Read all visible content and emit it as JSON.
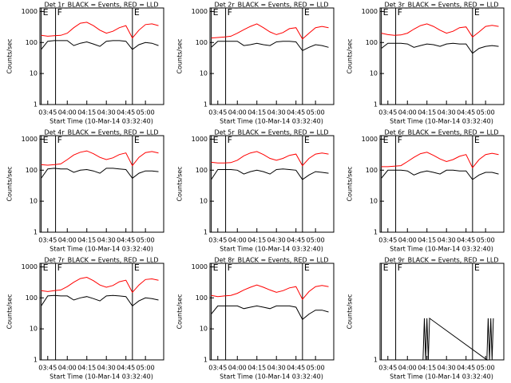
{
  "chart_data": [
    {
      "type": "line",
      "title": "Det 1r_BLACK = Events, RED = LLD",
      "x_label": "Start Time (10-Mar-14 03:32:40)",
      "y_label": "Counts/sec",
      "log": true,
      "x": [
        "03:40",
        "03:45",
        "03:50",
        "03:55",
        "04:00",
        "04:05",
        "04:10",
        "04:15",
        "04:20",
        "04:25",
        "04:30",
        "04:35",
        "04:40",
        "04:45",
        "04:50",
        "04:55",
        "05:00",
        "05:05",
        "05:10"
      ],
      "xlim": [
        "03:39",
        "05:14"
      ],
      "xticks": [
        "03:45",
        "04:00",
        "04:15",
        "04:30",
        "04:45",
        "05:00"
      ],
      "ylim": [
        1,
        1300
      ],
      "yticks": [
        1,
        10,
        100,
        1000
      ],
      "markers": [
        {
          "x": "03:40",
          "label": "E"
        },
        {
          "x": "03:51",
          "label": "F"
        },
        {
          "x": "04:50",
          "label": "E"
        }
      ],
      "series": [
        {
          "color": "#000000",
          "values": [
            60,
            110,
            115,
            115,
            115,
            80,
            95,
            105,
            90,
            75,
            110,
            115,
            115,
            110,
            60,
            85,
            100,
            95,
            80
          ]
        },
        {
          "color": "#ff0000",
          "values": [
            170,
            160,
            165,
            170,
            200,
            300,
            420,
            450,
            350,
            250,
            200,
            230,
            300,
            350,
            140,
            250,
            380,
            400,
            350
          ]
        }
      ]
    },
    {
      "type": "line",
      "title": "Det 2r_BLACK = Events, RED = LLD",
      "x_label": "Start Time (10-Mar-14 03:32:40)",
      "y_label": "Counts/sec",
      "log": true,
      "x": [
        "03:40",
        "03:45",
        "03:50",
        "03:55",
        "04:00",
        "04:05",
        "04:10",
        "04:15",
        "04:20",
        "04:25",
        "04:30",
        "04:35",
        "04:40",
        "04:45",
        "04:50",
        "04:55",
        "05:00",
        "05:05",
        "05:10"
      ],
      "xlim": [
        "03:39",
        "05:14"
      ],
      "xticks": [
        "03:45",
        "04:00",
        "04:15",
        "04:30",
        "04:45",
        "05:00"
      ],
      "ylim": [
        1,
        1300
      ],
      "yticks": [
        1,
        10,
        100,
        1000
      ],
      "markers": [
        {
          "x": "03:40",
          "label": "E"
        },
        {
          "x": "03:51",
          "label": "F"
        },
        {
          "x": "04:50",
          "label": "E"
        }
      ],
      "series": [
        {
          "color": "#000000",
          "values": [
            70,
            110,
            110,
            110,
            110,
            80,
            85,
            95,
            85,
            80,
            105,
            110,
            110,
            105,
            55,
            70,
            85,
            80,
            70
          ]
        },
        {
          "color": "#ff0000",
          "values": [
            140,
            145,
            150,
            160,
            200,
            260,
            330,
            400,
            300,
            220,
            180,
            210,
            280,
            300,
            130,
            200,
            300,
            330,
            300
          ]
        }
      ]
    },
    {
      "type": "line",
      "title": "Det 3r_BLACK = Events, RED = LLD",
      "x_label": "Start Time (10-Mar-14 03:32:40)",
      "y_label": "Counts/sec",
      "log": true,
      "x": [
        "03:40",
        "03:45",
        "03:50",
        "03:55",
        "04:00",
        "04:05",
        "04:10",
        "04:15",
        "04:20",
        "04:25",
        "04:30",
        "04:35",
        "04:40",
        "04:45",
        "04:50",
        "04:55",
        "05:00",
        "05:05",
        "05:10"
      ],
      "xlim": [
        "03:39",
        "05:14"
      ],
      "xticks": [
        "03:45",
        "04:00",
        "04:15",
        "04:30",
        "04:45",
        "05:00"
      ],
      "ylim": [
        1,
        1300
      ],
      "yticks": [
        1,
        10,
        100,
        1000
      ],
      "markers": [
        {
          "x": "03:40",
          "label": "E"
        },
        {
          "x": "03:51",
          "label": "F"
        },
        {
          "x": "04:50",
          "label": "E"
        }
      ],
      "series": [
        {
          "color": "#000000",
          "values": [
            65,
            95,
            95,
            95,
            90,
            70,
            80,
            90,
            85,
            75,
            90,
            95,
            90,
            90,
            45,
            65,
            75,
            80,
            75
          ]
        },
        {
          "color": "#ff0000",
          "values": [
            200,
            180,
            170,
            175,
            200,
            270,
            350,
            400,
            330,
            250,
            200,
            230,
            300,
            320,
            150,
            220,
            330,
            360,
            330
          ]
        }
      ]
    },
    {
      "type": "line",
      "title": "Det 4r_BLACK = Events, RED = LLD",
      "x_label": "Start Time (10-Mar-14 03:32:40)",
      "y_label": "Counts/sec",
      "log": true,
      "x": [
        "03:40",
        "03:45",
        "03:50",
        "03:55",
        "04:00",
        "04:05",
        "04:10",
        "04:15",
        "04:20",
        "04:25",
        "04:30",
        "04:35",
        "04:40",
        "04:45",
        "04:50",
        "04:55",
        "05:00",
        "05:05",
        "05:10"
      ],
      "xlim": [
        "03:39",
        "05:14"
      ],
      "xticks": [
        "03:45",
        "04:00",
        "04:15",
        "04:30",
        "04:45",
        "05:00"
      ],
      "ylim": [
        1,
        1300
      ],
      "yticks": [
        1,
        10,
        100,
        1000
      ],
      "markers": [
        {
          "x": "03:40",
          "label": "E"
        },
        {
          "x": "03:51",
          "label": "F"
        },
        {
          "x": "04:50",
          "label": "E"
        }
      ],
      "series": [
        {
          "color": "#000000",
          "values": [
            55,
            110,
            115,
            110,
            110,
            85,
            100,
            105,
            95,
            80,
            115,
            115,
            110,
            105,
            55,
            80,
            95,
            95,
            90
          ]
        },
        {
          "color": "#ff0000",
          "values": [
            150,
            145,
            150,
            160,
            220,
            310,
            380,
            420,
            340,
            260,
            220,
            250,
            320,
            360,
            140,
            260,
            370,
            400,
            360
          ]
        }
      ]
    },
    {
      "type": "line",
      "title": "Det 5r_BLACK = Events, RED = LLD",
      "x_label": "Start Time (10-Mar-14 03:32:40)",
      "y_label": "Counts/sec",
      "log": true,
      "x": [
        "03:40",
        "03:45",
        "03:50",
        "03:55",
        "04:00",
        "04:05",
        "04:10",
        "04:15",
        "04:20",
        "04:25",
        "04:30",
        "04:35",
        "04:40",
        "04:45",
        "04:50",
        "04:55",
        "05:00",
        "05:05",
        "05:10"
      ],
      "xlim": [
        "03:39",
        "05:14"
      ],
      "xticks": [
        "03:45",
        "04:00",
        "04:15",
        "04:30",
        "04:45",
        "05:00"
      ],
      "ylim": [
        1,
        1300
      ],
      "yticks": [
        1,
        10,
        100,
        1000
      ],
      "markers": [
        {
          "x": "03:40",
          "label": "E"
        },
        {
          "x": "03:51",
          "label": "F"
        },
        {
          "x": "04:50",
          "label": "E"
        }
      ],
      "series": [
        {
          "color": "#000000",
          "values": [
            50,
            105,
            105,
            105,
            100,
            75,
            90,
            100,
            90,
            75,
            105,
            110,
            105,
            100,
            50,
            70,
            90,
            85,
            80
          ]
        },
        {
          "color": "#ff0000",
          "values": [
            180,
            170,
            170,
            175,
            210,
            290,
            360,
            400,
            320,
            240,
            210,
            240,
            300,
            330,
            140,
            240,
            330,
            360,
            330
          ]
        }
      ]
    },
    {
      "type": "line",
      "title": "Det 6r_BLACK = Events, RED = LLD",
      "x_label": "Start Time (10-Mar-14 03:32:40)",
      "y_label": "Counts/sec",
      "log": true,
      "x": [
        "03:40",
        "03:45",
        "03:50",
        "03:55",
        "04:00",
        "04:05",
        "04:10",
        "04:15",
        "04:20",
        "04:25",
        "04:30",
        "04:35",
        "04:40",
        "04:45",
        "04:50",
        "04:55",
        "05:00",
        "05:05",
        "05:10"
      ],
      "xlim": [
        "03:39",
        "05:14"
      ],
      "xticks": [
        "03:45",
        "04:00",
        "04:15",
        "04:30",
        "04:45",
        "05:00"
      ],
      "ylim": [
        1,
        1300
      ],
      "yticks": [
        1,
        10,
        100,
        1000
      ],
      "markers": [
        {
          "x": "03:40",
          "label": "E"
        },
        {
          "x": "03:51",
          "label": "F"
        },
        {
          "x": "04:50",
          "label": "E"
        }
      ],
      "series": [
        {
          "color": "#000000",
          "values": [
            55,
            100,
            100,
            100,
            95,
            70,
            85,
            95,
            85,
            75,
            100,
            100,
            95,
            95,
            50,
            70,
            85,
            85,
            75
          ]
        },
        {
          "color": "#ff0000",
          "values": [
            130,
            130,
            135,
            140,
            190,
            260,
            340,
            380,
            300,
            230,
            190,
            220,
            280,
            320,
            120,
            220,
            320,
            350,
            320
          ]
        }
      ]
    },
    {
      "type": "line",
      "title": "Det 7r_BLACK = Events, RED = LLD",
      "x_label": "Start Time (10-Mar-14 03:32:40)",
      "y_label": "Counts/sec",
      "log": true,
      "x": [
        "03:40",
        "03:45",
        "03:50",
        "03:55",
        "04:00",
        "04:05",
        "04:10",
        "04:15",
        "04:20",
        "04:25",
        "04:30",
        "04:35",
        "04:40",
        "04:45",
        "04:50",
        "04:55",
        "05:00",
        "05:05",
        "05:10"
      ],
      "xlim": [
        "03:39",
        "05:14"
      ],
      "xticks": [
        "03:45",
        "04:00",
        "04:15",
        "04:30",
        "04:45",
        "05:00"
      ],
      "ylim": [
        1,
        1300
      ],
      "yticks": [
        1,
        10,
        100,
        1000
      ],
      "markers": [
        {
          "x": "03:40",
          "label": "E"
        },
        {
          "x": "03:51",
          "label": "F"
        },
        {
          "x": "04:50",
          "label": "E"
        }
      ],
      "series": [
        {
          "color": "#000000",
          "values": [
            55,
            115,
            120,
            115,
            115,
            85,
            100,
            110,
            95,
            80,
            115,
            120,
            115,
            110,
            55,
            80,
            100,
            95,
            85
          ]
        },
        {
          "color": "#ff0000",
          "values": [
            170,
            160,
            170,
            180,
            230,
            320,
            420,
            460,
            360,
            260,
            220,
            250,
            330,
            370,
            150,
            260,
            390,
            410,
            370
          ]
        }
      ]
    },
    {
      "type": "line",
      "title": "Det 8r_BLACK = Events, RED = LLD",
      "x_label": "Start Time (10-Mar-14 03:32:40)",
      "y_label": "Counts/sec",
      "log": true,
      "x": [
        "03:40",
        "03:45",
        "03:50",
        "03:55",
        "04:00",
        "04:05",
        "04:10",
        "04:15",
        "04:20",
        "04:25",
        "04:30",
        "04:35",
        "04:40",
        "04:45",
        "04:50",
        "04:55",
        "05:00",
        "05:05",
        "05:10"
      ],
      "xlim": [
        "03:39",
        "05:14"
      ],
      "xticks": [
        "03:45",
        "04:00",
        "04:15",
        "04:30",
        "04:45",
        "05:00"
      ],
      "ylim": [
        1,
        1300
      ],
      "yticks": [
        1,
        10,
        100,
        1000
      ],
      "markers": [
        {
          "x": "03:40",
          "label": "E"
        },
        {
          "x": "03:51",
          "label": "F"
        },
        {
          "x": "04:50",
          "label": "E"
        }
      ],
      "series": [
        {
          "color": "#000000",
          "values": [
            30,
            55,
            55,
            55,
            55,
            45,
            50,
            55,
            50,
            45,
            55,
            55,
            55,
            50,
            20,
            30,
            40,
            40,
            35
          ]
        },
        {
          "color": "#ff0000",
          "values": [
            120,
            110,
            115,
            120,
            140,
            180,
            220,
            260,
            220,
            180,
            150,
            170,
            210,
            230,
            90,
            160,
            230,
            250,
            230
          ]
        }
      ]
    },
    {
      "type": "line",
      "title": "Det 9r_BLACK = Events, RED = LLD",
      "x_label": "Start Time (10-Mar-14 03:32:40)",
      "y_label": "Counts/sec",
      "log": true,
      "x": [
        "04:12",
        "04:13",
        "04:14",
        "04:15",
        "04:16",
        "04:17",
        "05:01",
        "05:02",
        "05:03",
        "05:04",
        "05:05",
        "05:06"
      ],
      "xlim": [
        "03:39",
        "05:14"
      ],
      "xticks": [
        "03:45",
        "04:00",
        "04:15",
        "04:30",
        "04:45",
        "05:00"
      ],
      "ylim": [
        1,
        5
      ],
      "yticks": [
        1
      ],
      "markers": [
        {
          "x": "03:40",
          "label": "E"
        },
        {
          "x": "03:51",
          "label": "F"
        },
        {
          "x": "04:50",
          "label": "E"
        }
      ],
      "series": [
        {
          "color": "#000000",
          "values": [
            1,
            2,
            1,
            2,
            1,
            2,
            1,
            2,
            1,
            2,
            1,
            2
          ]
        }
      ]
    }
  ]
}
